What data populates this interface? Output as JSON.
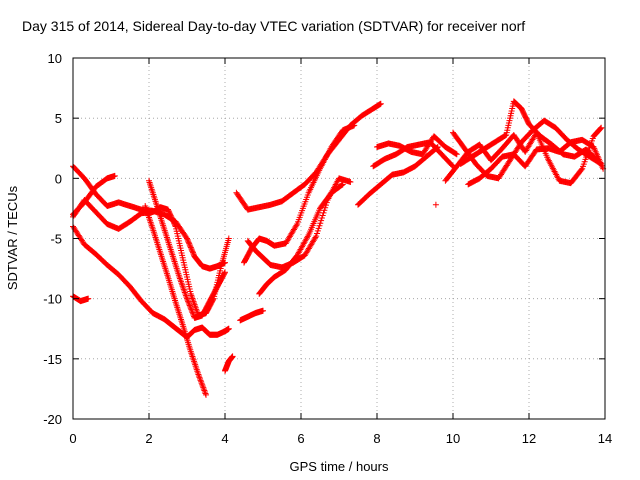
{
  "chart_data": {
    "type": "scatter",
    "title": "Day 315 of 2014, Sidereal Day-to-day VTEC variation (SDTVAR) for receiver norf",
    "xlabel": "GPS time / hours",
    "ylabel": "SDTVAR / TECUs",
    "xlim": [
      0,
      14
    ],
    "ylim": [
      -20,
      10
    ],
    "x_ticks": [
      0,
      2,
      4,
      6,
      8,
      10,
      12,
      14
    ],
    "y_ticks": [
      -20,
      -15,
      -10,
      -5,
      0,
      5,
      10
    ],
    "x_tick_labels": [
      "0",
      "2",
      "4",
      "6",
      "8",
      "10",
      "12",
      "14"
    ],
    "y_tick_labels": [
      "-20",
      "-15",
      "-10",
      "-5",
      "0",
      "5",
      "10"
    ],
    "grid": true,
    "marker": "plus",
    "color": "#ff0000",
    "series": [
      {
        "x": [
          0.0,
          0.3,
          0.6,
          0.9,
          1.2,
          1.5,
          1.8,
          2.1,
          2.4,
          2.7,
          3.0,
          3.2,
          3.4,
          3.6,
          3.8,
          4.0
        ],
        "y": [
          1.0,
          0.0,
          -1.3,
          -2.3,
          -2.0,
          -2.3,
          -2.6,
          -2.7,
          -3.0,
          -3.6,
          -5.0,
          -6.5,
          -7.3,
          -7.5,
          -7.3,
          -7.0
        ]
      },
      {
        "x": [
          0.0,
          0.3,
          0.6,
          0.9,
          1.1
        ],
        "y": [
          -3.0,
          -2.0,
          -0.7,
          0.0,
          0.2
        ]
      },
      {
        "x": [
          0.0,
          0.2,
          0.4
        ],
        "y": [
          -9.8,
          -10.2,
          -10.0
        ]
      },
      {
        "x": [
          0.0,
          0.3,
          0.6,
          0.9,
          1.2,
          1.5,
          1.8,
          2.1,
          2.3,
          2.5,
          2.7,
          2.9,
          3.1,
          3.3,
          3.5,
          3.7,
          3.9,
          4.1
        ],
        "y": [
          -3.2,
          -1.8,
          -2.8,
          -3.8,
          -4.2,
          -3.6,
          -2.9,
          -2.8,
          -2.4,
          -2.6,
          -4.0,
          -6.8,
          -9.6,
          -11.4,
          -11.2,
          -10.0,
          -7.3,
          -5.0
        ]
      },
      {
        "x": [
          0.0,
          0.3,
          0.6,
          0.9,
          1.2,
          1.5,
          1.8,
          2.1,
          2.4,
          2.6,
          2.8,
          3.0,
          3.2,
          3.4,
          3.6,
          3.8,
          4.0,
          4.1
        ],
        "y": [
          -4.0,
          -5.5,
          -6.3,
          -7.2,
          -8.0,
          -9.0,
          -10.2,
          -11.2,
          -11.7,
          -12.2,
          -12.7,
          -13.2,
          -12.6,
          -12.4,
          -13.0,
          -13.0,
          -12.7,
          -12.5
        ]
      },
      {
        "x": [
          2.0,
          2.2,
          2.4,
          2.6,
          2.8,
          3.0,
          3.2,
          3.4,
          3.6,
          3.8,
          4.0
        ],
        "y": [
          -0.2,
          -2.2,
          -4.2,
          -6.2,
          -8.2,
          -10.0,
          -11.6,
          -11.4,
          -10.2,
          -9.0,
          -7.8
        ]
      },
      {
        "x": [
          1.9,
          2.1,
          2.3,
          2.5,
          2.7,
          2.9,
          3.1,
          3.3,
          3.5
        ],
        "y": [
          -2.3,
          -4.2,
          -6.2,
          -8.2,
          -10.3,
          -12.3,
          -14.4,
          -16.3,
          -18.0
        ]
      },
      {
        "x": [
          4.0,
          4.1,
          4.2
        ],
        "y": [
          -16.0,
          -15.2,
          -14.8
        ]
      },
      {
        "x": [
          4.3,
          4.6,
          4.9,
          5.2,
          5.5,
          5.8,
          6.1,
          6.4,
          6.7,
          7.0,
          7.3,
          7.6,
          7.9,
          8.1
        ],
        "y": [
          -1.2,
          -2.6,
          -2.4,
          -2.2,
          -1.9,
          -1.2,
          -0.5,
          0.5,
          2.0,
          3.2,
          4.4,
          5.2,
          5.8,
          6.2
        ]
      },
      {
        "x": [
          4.5,
          4.7,
          4.9,
          5.1,
          5.3,
          5.6,
          5.9,
          6.2,
          6.5,
          6.8,
          7.1,
          7.4
        ],
        "y": [
          -7.0,
          -5.8,
          -5.0,
          -5.2,
          -5.6,
          -5.4,
          -3.8,
          -1.2,
          0.8,
          2.6,
          4.0,
          4.4
        ]
      },
      {
        "x": [
          4.6,
          4.8,
          5.0,
          5.2,
          5.5,
          5.8,
          6.1,
          6.4,
          6.7,
          7.0,
          7.3
        ],
        "y": [
          -5.2,
          -6.0,
          -6.6,
          -7.2,
          -7.4,
          -7.0,
          -6.4,
          -4.8,
          -1.8,
          0.0,
          -0.3
        ]
      },
      {
        "x": [
          4.4,
          4.6,
          4.8,
          5.0
        ],
        "y": [
          -11.8,
          -11.5,
          -11.2,
          -11.0
        ]
      },
      {
        "x": [
          4.9,
          5.1,
          5.3,
          5.6,
          5.9,
          6.2,
          6.5,
          6.8,
          7.1
        ],
        "y": [
          -9.6,
          -8.8,
          -8.2,
          -7.6,
          -6.4,
          -4.7,
          -2.5,
          -1.2,
          -0.5
        ]
      },
      {
        "x": [
          7.5,
          7.8,
          8.1,
          8.4,
          8.7,
          9.0,
          9.3,
          9.6
        ],
        "y": [
          -2.2,
          -1.3,
          -0.5,
          0.3,
          0.5,
          1.0,
          1.8,
          2.6
        ]
      },
      {
        "x": [
          7.9,
          8.2,
          8.5,
          8.8,
          9.1,
          9.4,
          9.7,
          10.0
        ],
        "y": [
          1.0,
          1.6,
          2.0,
          2.6,
          2.8,
          3.0,
          2.0,
          1.0
        ]
      },
      {
        "x": [
          8.0,
          8.3,
          8.6,
          8.9,
          9.2,
          9.5,
          9.8,
          10.1
        ],
        "y": [
          2.6,
          2.9,
          2.7,
          2.2,
          2.0,
          3.5,
          2.6,
          2.0
        ]
      },
      {
        "x": [
          9.55
        ],
        "y": [
          -2.2
        ]
      },
      {
        "x": [
          9.8,
          10.1,
          10.4,
          10.7,
          11.0,
          11.3,
          11.6,
          11.9,
          12.2,
          12.5,
          12.8,
          13.1,
          13.4,
          13.7,
          13.9
        ],
        "y": [
          -0.2,
          1.0,
          2.2,
          2.8,
          1.5,
          2.5,
          3.6,
          2.2,
          3.8,
          1.6,
          -0.2,
          -0.4,
          0.8,
          3.5,
          4.2
        ]
      },
      {
        "x": [
          10.0,
          10.3,
          10.6,
          10.9,
          11.2,
          11.5,
          11.8,
          12.1,
          12.4,
          12.7,
          13.0,
          13.3,
          13.6,
          13.9
        ],
        "y": [
          3.8,
          2.5,
          1.2,
          0.2,
          0.0,
          1.5,
          3.0,
          4.0,
          4.8,
          4.2,
          3.2,
          2.4,
          1.8,
          1.2
        ]
      },
      {
        "x": [
          10.2,
          10.5,
          10.8,
          11.1,
          11.4,
          11.6,
          11.8,
          12.0,
          12.3,
          12.6,
          12.9,
          13.2,
          13.5,
          13.8
        ],
        "y": [
          1.2,
          1.8,
          2.4,
          3.0,
          3.6,
          6.4,
          5.8,
          4.5,
          3.5,
          2.8,
          2.0,
          1.8,
          2.4,
          1.5
        ]
      },
      {
        "x": [
          10.4,
          10.7,
          11.0,
          11.3,
          11.6,
          11.9,
          12.2,
          12.5,
          12.8,
          13.1,
          13.4,
          13.7,
          13.95
        ],
        "y": [
          -0.5,
          0.0,
          0.8,
          1.8,
          2.0,
          1.0,
          2.4,
          2.5,
          2.2,
          3.0,
          3.2,
          2.6,
          0.8
        ]
      }
    ]
  }
}
